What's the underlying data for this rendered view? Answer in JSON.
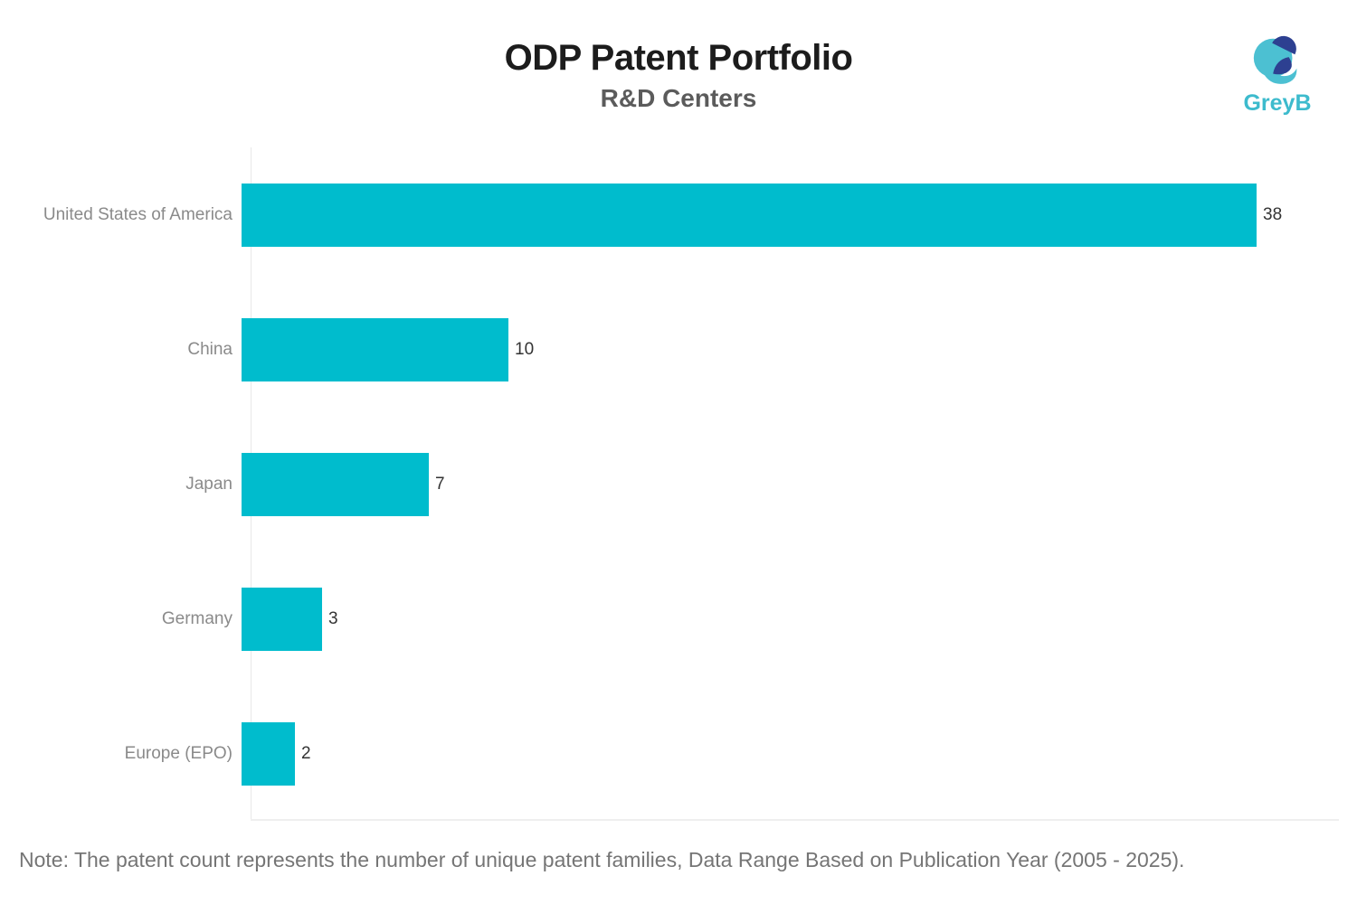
{
  "header": {
    "title": "ODP Patent Portfolio",
    "subtitle": "R&D Centers"
  },
  "logo": {
    "text": "GreyB",
    "teal": "#4cc0d2",
    "navy": "#2d4091"
  },
  "chart_data": {
    "type": "bar",
    "orientation": "horizontal",
    "categories": [
      "United States of America",
      "China",
      "Japan",
      "Germany",
      "Europe (EPO)"
    ],
    "values": [
      38,
      10,
      7,
      3,
      2
    ],
    "title": "ODP Patent Portfolio",
    "subtitle": "R&D Centers",
    "xlabel": "",
    "ylabel": "",
    "xlim": [
      0,
      38
    ],
    "grid": false,
    "legend": false,
    "value_labels": true,
    "bar_color": "#00bccd",
    "label_color": "#8a8a8a",
    "value_label_color": "#333333"
  },
  "note": "Note: The patent count represents the number of unique patent families, Data Range Based on Publication Year (2005 - 2025)."
}
